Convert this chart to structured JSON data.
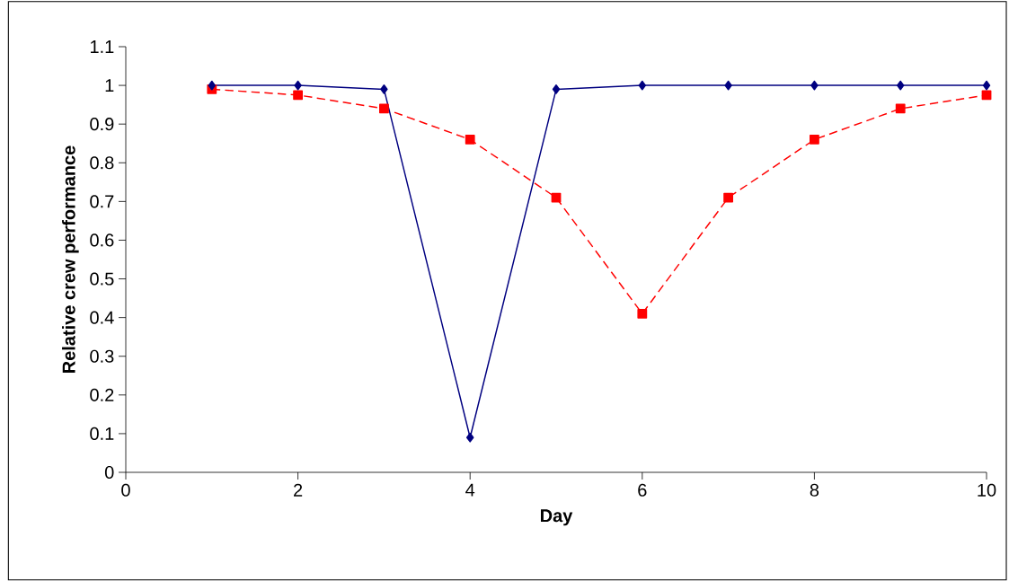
{
  "chart_data": {
    "type": "line",
    "xlabel": "Day",
    "ylabel": "Relative crew performance",
    "x": [
      1,
      2,
      3,
      4,
      5,
      6,
      7,
      8,
      9,
      10
    ],
    "series": [
      {
        "color": "#000080",
        "marker": "diamond",
        "line_style": "solid",
        "values": [
          1,
          1,
          0.99,
          0.09,
          0.99,
          1,
          1,
          1,
          1,
          1
        ]
      },
      {
        "color": "#ff0000",
        "marker": "square",
        "line_style": "dashed",
        "values": [
          0.99,
          0.975,
          0.94,
          0.86,
          0.71,
          0.41,
          0.71,
          0.86,
          0.94,
          0.975
        ]
      }
    ],
    "xlim": [
      0,
      10
    ],
    "ylim": [
      0,
      1.1
    ],
    "xticks": [
      0,
      2,
      4,
      6,
      8,
      10
    ],
    "yticks": [
      0,
      0.1,
      0.2,
      0.3,
      0.4,
      0.5,
      0.6,
      0.7,
      0.8,
      0.9,
      1,
      1.1
    ],
    "grid": false
  }
}
